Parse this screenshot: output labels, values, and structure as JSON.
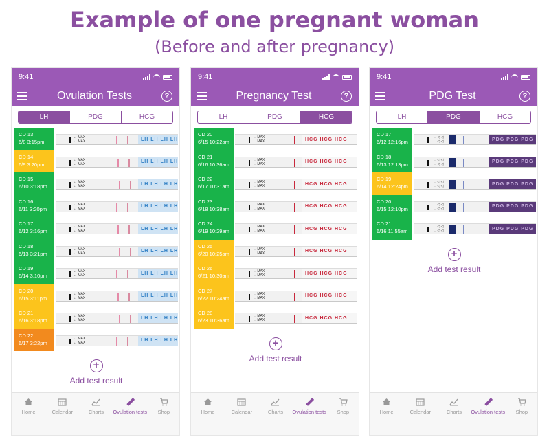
{
  "header": {
    "title": "Example of one pregnant woman",
    "subtitle": "(Before and after pregnancy)"
  },
  "colors": {
    "purple": "#8b4fa0",
    "header_bg": "#9b59b6",
    "green": "#19b34a",
    "yellow": "#fcc41c",
    "orange": "#f28a1e"
  },
  "phones": [
    {
      "status_time": "9:41",
      "app_title": "Ovulation Tests",
      "tabs": [
        {
          "label": "LH"
        },
        {
          "label": "PDG"
        },
        {
          "label": "HCG"
        }
      ],
      "active_tab": 0,
      "strip_type": "lh",
      "tests": [
        {
          "cd": "CD 13",
          "date": "6/8  3:15pm",
          "status": "green"
        },
        {
          "cd": "CD 14",
          "date": "6/9  3:20pm",
          "status": "yellow"
        },
        {
          "cd": "CD 15",
          "date": "6/10  3:18pm",
          "status": "green"
        },
        {
          "cd": "CD 16",
          "date": "6/11  3:20pm",
          "status": "green"
        },
        {
          "cd": "CD 17",
          "date": "6/12  3:16pm",
          "status": "green"
        },
        {
          "cd": "CD 18",
          "date": "6/13  3:21pm",
          "status": "green"
        },
        {
          "cd": "CD 19",
          "date": "6/14  3:10pm",
          "status": "green"
        },
        {
          "cd": "CD 20",
          "date": "6/15  3:11pm",
          "status": "yellow"
        },
        {
          "cd": "CD 21",
          "date": "6/16  3:18pm",
          "status": "yellow"
        },
        {
          "cd": "CD 22",
          "date": "6/17  3:22pm",
          "status": "orange"
        }
      ],
      "add_label": "Add test result",
      "nav": [
        {
          "label": "Home",
          "icon": "home-icon"
        },
        {
          "label": "Calendar",
          "icon": "calendar-icon"
        },
        {
          "label": "Charts",
          "icon": "chart-icon"
        },
        {
          "label": "Ovulation tests",
          "icon": "test-strip-icon"
        },
        {
          "label": "Shop",
          "icon": "cart-icon"
        }
      ],
      "active_nav": 3
    },
    {
      "status_time": "9:41",
      "app_title": "Pregnancy Test",
      "tabs": [
        {
          "label": "LH"
        },
        {
          "label": "PDG"
        },
        {
          "label": "HCG"
        }
      ],
      "active_tab": 2,
      "strip_type": "hcg",
      "tests": [
        {
          "cd": "CD 20",
          "date": "6/15  10:22am",
          "status": "green"
        },
        {
          "cd": "CD 21",
          "date": "6/16  10:36am",
          "status": "green"
        },
        {
          "cd": "CD 22",
          "date": "6/17  10:31am",
          "status": "green"
        },
        {
          "cd": "CD 23",
          "date": "6/18  10:38am",
          "status": "green"
        },
        {
          "cd": "CD 24",
          "date": "6/19  10:29am",
          "status": "green"
        },
        {
          "cd": "CD 25",
          "date": "6/20  10:25am",
          "status": "yellow"
        },
        {
          "cd": "CD 26",
          "date": "6/21  10:30am",
          "status": "yellow"
        },
        {
          "cd": "CD 27",
          "date": "6/22  10:24am",
          "status": "yellow"
        },
        {
          "cd": "CD 28",
          "date": "6/23  10:36am",
          "status": "yellow"
        }
      ],
      "add_label": "Add test result",
      "nav": [
        {
          "label": "Home",
          "icon": "home-icon"
        },
        {
          "label": "Calendar",
          "icon": "calendar-icon"
        },
        {
          "label": "Charts",
          "icon": "chart-icon"
        },
        {
          "label": "Ovulation tests",
          "icon": "test-strip-icon"
        },
        {
          "label": "Shop",
          "icon": "cart-icon"
        }
      ],
      "active_nav": 3
    },
    {
      "status_time": "9:41",
      "app_title": "PDG Test",
      "tabs": [
        {
          "label": "LH"
        },
        {
          "label": "PDG"
        },
        {
          "label": "HCG"
        }
      ],
      "active_tab": 1,
      "strip_type": "pdg",
      "tests": [
        {
          "cd": "CD 17",
          "date": "6/12  12:16pm",
          "status": "green"
        },
        {
          "cd": "CD 18",
          "date": "6/13  12:13pm",
          "status": "green"
        },
        {
          "cd": "CD 19",
          "date": "6/14  12:24pm",
          "status": "yellow"
        },
        {
          "cd": "CD 20",
          "date": "6/15  12:10pm",
          "status": "green"
        },
        {
          "cd": "CD 21",
          "date": "6/16  11:55am",
          "status": "green"
        }
      ],
      "add_label": "Add test result",
      "nav": [
        {
          "label": "Home",
          "icon": "home-icon"
        },
        {
          "label": "Calendar",
          "icon": "calendar-icon"
        },
        {
          "label": "Charts",
          "icon": "chart-icon"
        },
        {
          "label": "Ovulation tests",
          "icon": "test-strip-icon"
        },
        {
          "label": "Shop",
          "icon": "cart-icon"
        }
      ],
      "active_nav": 3
    }
  ]
}
